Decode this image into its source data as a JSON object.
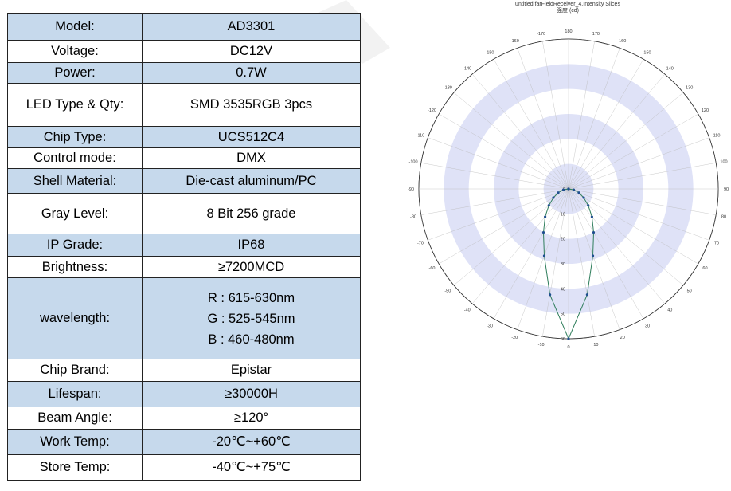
{
  "spec_table": {
    "rows": [
      {
        "label": "Model:",
        "value": "AD3301"
      },
      {
        "label": "Voltage:",
        "value": "DC12V"
      },
      {
        "label": "Power:",
        "value": "0.7W"
      },
      {
        "label": "LED Type & Qty:",
        "value": "SMD 3535RGB 3pcs"
      },
      {
        "label": "Chip Type:",
        "value": "UCS512C4"
      },
      {
        "label": "Control mode:",
        "value": "DMX"
      },
      {
        "label": "Shell Material:",
        "value": "Die-cast aluminum/PC"
      },
      {
        "label": "Gray Level:",
        "value": "8 Bit 256 grade"
      },
      {
        "label": "IP Grade:",
        "value": "IP68"
      },
      {
        "label": "Brightness:",
        "value": "≥7200MCD"
      },
      {
        "label": "wavelength:",
        "values": [
          "R : 615-630nm",
          "G : 525-545nm",
          "B : 460-480nm"
        ]
      },
      {
        "label": "Chip Brand:",
        "value": "Epistar"
      },
      {
        "label": "Lifespan:",
        "value": "≥30000H"
      },
      {
        "label": "Beam Angle:",
        "value": "≥120°"
      },
      {
        "label": "Work Temp:",
        "value": "-20℃~+60℃"
      },
      {
        "label": "Store Temp:",
        "value": "-40℃~+75℃"
      }
    ]
  },
  "chart_data": {
    "type": "polar",
    "title": "untitled.farFieldReceiver_4.Intensity Slices",
    "subtitle": "强度 (cd)",
    "angle_labels": [
      "180",
      "170",
      "160",
      "150",
      "140",
      "130",
      "120",
      "110",
      "100",
      "90",
      "80",
      "70",
      "60",
      "50",
      "40",
      "30",
      "20",
      "10",
      "0",
      "-10",
      "-20",
      "-30",
      "-40",
      "-50",
      "-60",
      "-70",
      "-80",
      "-90",
      "-100",
      "-110",
      "-120",
      "-130",
      "-140",
      "-150",
      "-160",
      "-170"
    ],
    "radial_ticks": [
      0,
      10,
      20,
      30,
      40,
      50,
      60
    ],
    "radial_range": [
      0,
      60
    ],
    "series": [
      {
        "color": "#2e7d5b",
        "marker_color": "#1f4f8f",
        "points": [
          {
            "angle": -90,
            "r": 0
          },
          {
            "angle": -80,
            "r": 2.1
          },
          {
            "angle": -70,
            "r": 4.4
          },
          {
            "angle": -60,
            "r": 7.0
          },
          {
            "angle": -50,
            "r": 10.3
          },
          {
            "angle": -40,
            "r": 14.6
          },
          {
            "angle": -30,
            "r": 20.1
          },
          {
            "angle": -20,
            "r": 28.5
          },
          {
            "angle": -10,
            "r": 43.0
          },
          {
            "angle": 0,
            "r": 60.0
          },
          {
            "angle": 10,
            "r": 43.0
          },
          {
            "angle": 20,
            "r": 28.5
          },
          {
            "angle": 30,
            "r": 20.1
          },
          {
            "angle": 40,
            "r": 14.6
          },
          {
            "angle": 50,
            "r": 10.3
          },
          {
            "angle": 60,
            "r": 7.0
          },
          {
            "angle": 70,
            "r": 4.4
          },
          {
            "angle": 80,
            "r": 2.1
          },
          {
            "angle": 90,
            "r": 0
          }
        ]
      }
    ]
  }
}
